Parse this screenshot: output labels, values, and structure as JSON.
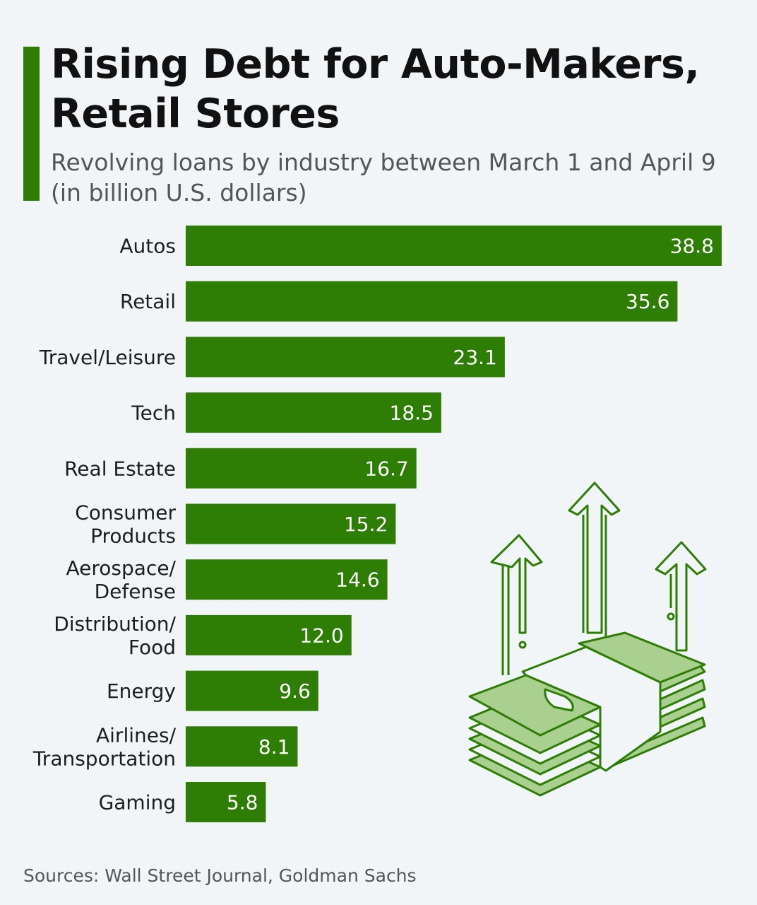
{
  "title": "Rising Debt for Auto-Makers, Retail Stores",
  "subtitle": "Revolving loans by industry between March 1 and April 9 (in billion U.S. dollars)",
  "source": "Sources: Wall Street Journal, Goldman Sachs",
  "colors": {
    "accent": "#2e7d05",
    "bar": "#2e7d05",
    "bar_label": "#ffffff",
    "background": "#f2f5f8",
    "illustration_fill": "#a9d08e",
    "illustration_stroke": "#2e7d05"
  },
  "illustration": {
    "name": "money-stack-rising-arrows-icon"
  },
  "chart_data": {
    "type": "bar",
    "orientation": "horizontal",
    "title": "Rising Debt for Auto-Makers, Retail Stores",
    "xlabel": "",
    "ylabel": "",
    "unit": "billion U.S. dollars",
    "xlim": [
      0,
      38.8
    ],
    "grid": false,
    "categories": [
      [
        "Autos"
      ],
      [
        "Retail"
      ],
      [
        "Travel/Leisure"
      ],
      [
        "Tech"
      ],
      [
        "Real Estate"
      ],
      [
        "Consumer",
        "Products"
      ],
      [
        "Aerospace/",
        "Defense"
      ],
      [
        "Distribution/",
        "Food"
      ],
      [
        "Energy"
      ],
      [
        "Airlines/",
        "Transportation"
      ],
      [
        "Gaming"
      ]
    ],
    "values": [
      38.8,
      35.6,
      23.1,
      18.5,
      16.7,
      15.2,
      14.6,
      12.0,
      9.6,
      8.1,
      5.8
    ],
    "value_labels": [
      "38.8",
      "35.6",
      "23.1",
      "18.5",
      "16.7",
      "15.2",
      "14.6",
      "12.0",
      "9.6",
      "8.1",
      "5.8"
    ]
  }
}
